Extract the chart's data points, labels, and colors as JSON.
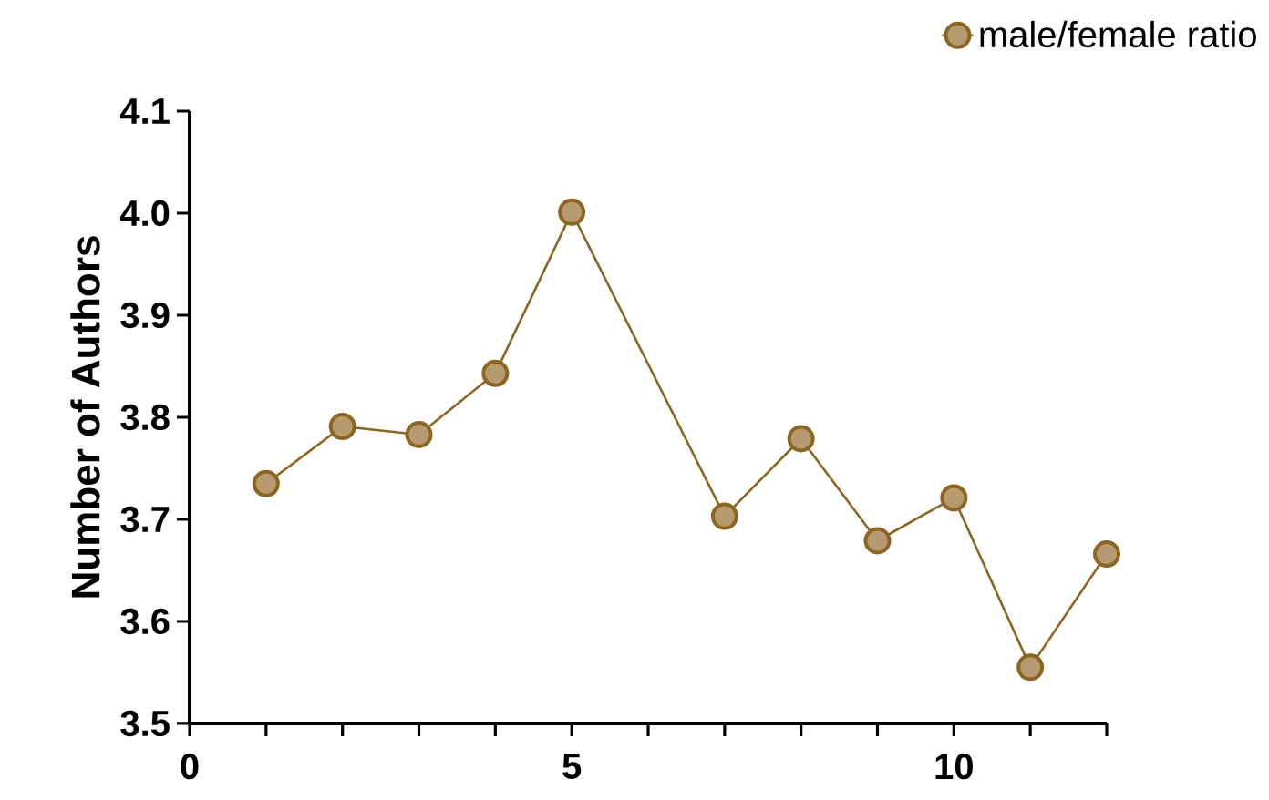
{
  "chart_data": {
    "type": "line",
    "ylabel": "Number of Authors",
    "x": [
      1,
      2,
      3,
      4,
      5,
      7,
      8,
      9,
      10,
      11,
      12
    ],
    "series": [
      {
        "name": "male/female ratio",
        "color": "#8d6522",
        "values": [
          3.735,
          3.791,
          3.783,
          3.843,
          4.001,
          3.703,
          3.779,
          3.679,
          3.721,
          3.555,
          3.666
        ]
      }
    ],
    "xlim": [
      0,
      12
    ],
    "xticks": [
      0,
      {
        "value": 1,
        "label": null
      },
      {
        "value": 2,
        "label": null
      },
      {
        "value": 3,
        "label": null
      },
      {
        "value": 4,
        "label": null
      },
      5,
      {
        "value": 6,
        "label": null
      },
      {
        "value": 7,
        "label": null
      },
      {
        "value": 8,
        "label": null
      },
      {
        "value": 9,
        "label": null
      },
      10,
      {
        "value": 11,
        "label": null
      },
      {
        "value": 12,
        "label": null
      }
    ],
    "ylim": [
      3.5,
      4.1
    ],
    "yticks": [
      3.5,
      3.6,
      3.7,
      3.8,
      3.9,
      {
        "value": 4.0,
        "label": "4.0"
      },
      4.1
    ],
    "grid": false,
    "legend": "top right",
    "marker": "circle",
    "line_style": "solid"
  }
}
